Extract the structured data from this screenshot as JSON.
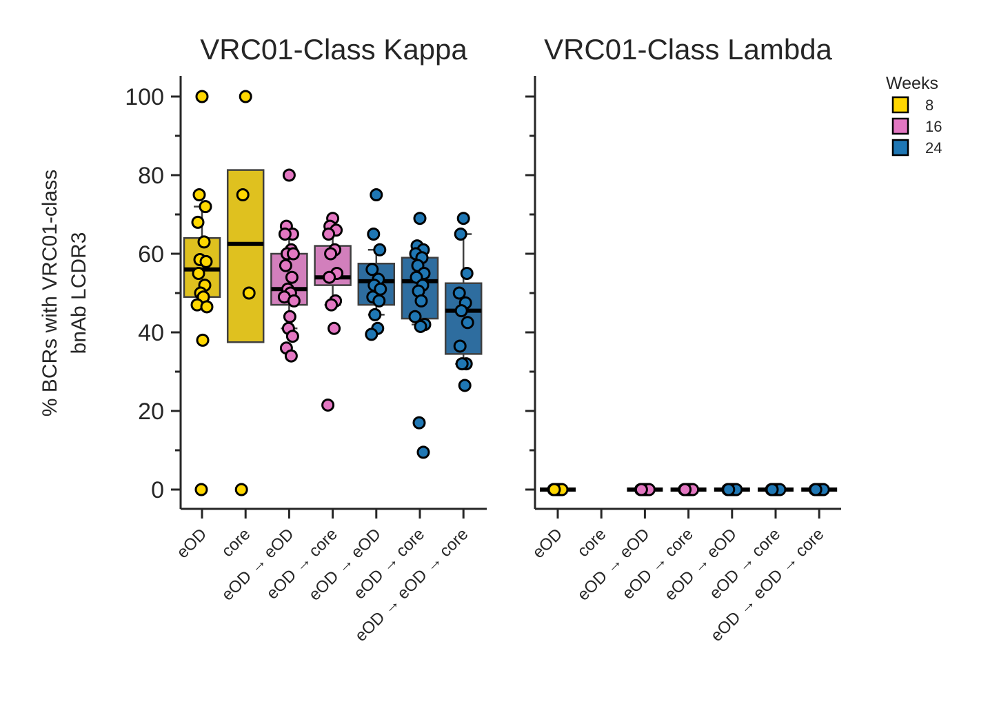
{
  "chart_data": {
    "type": "box",
    "ylabel_lines": [
      "% BCRs with VRC01-class",
      "bnAb LCDR3"
    ],
    "ylim": [
      -5,
      105
    ],
    "yticks": [
      0,
      20,
      40,
      60,
      80,
      100
    ],
    "categories": [
      "eOD",
      "core",
      "eOD → eOD",
      "eOD → core",
      "eOD → eOD",
      "eOD → core",
      "eOD → eOD → core"
    ],
    "category_week": [
      "8",
      "8",
      "16",
      "16",
      "24",
      "24",
      "24"
    ],
    "legend": {
      "title": "Weeks",
      "placement": "upper-right-outside",
      "entries": [
        {
          "label": "8",
          "color": "#FFD700"
        },
        {
          "label": "16",
          "color": "#E377C2"
        },
        {
          "label": "24",
          "color": "#1F77B4"
        }
      ]
    },
    "colors": {
      "8": {
        "point": "#FFD700",
        "box": "#DFC11F"
      },
      "16": {
        "point": "#E377C2",
        "box": "#D27FBC"
      },
      "24": {
        "point": "#1F77B4",
        "box": "#2E6D9F"
      }
    },
    "panels": [
      {
        "title": "VRC01-Class Kappa",
        "boxes": [
          {
            "q1": 49,
            "median": 56,
            "q3": 64,
            "whisker_low": 47,
            "whisker_high": 72
          },
          {
            "q1": 37.5,
            "median": 62.5,
            "q3": 81.3,
            "whisker_low": 37.5,
            "whisker_high": 81.3
          },
          {
            "q1": 47,
            "median": 51,
            "q3": 60,
            "whisker_low": 41,
            "whisker_high": 65
          },
          {
            "q1": 52,
            "median": 54,
            "q3": 62,
            "whisker_low": 47,
            "whisker_high": 67
          },
          {
            "q1": 47,
            "median": 53,
            "q3": 57.5,
            "whisker_low": 44.5,
            "whisker_high": 61
          },
          {
            "q1": 43.5,
            "median": 53,
            "q3": 59,
            "whisker_low": 42,
            "whisker_high": 61
          },
          {
            "q1": 34.5,
            "median": 45.5,
            "q3": 52.5,
            "whisker_low": 32,
            "whisker_high": 65
          }
        ],
        "points": [
          [
            100,
            75,
            72,
            68,
            63,
            58.5,
            58,
            55,
            52,
            50,
            49,
            47,
            46.5,
            38,
            0
          ],
          [
            100,
            75,
            50,
            0
          ],
          [
            80,
            67,
            65,
            65,
            61,
            60,
            60,
            57,
            54,
            51,
            50,
            49,
            48,
            44,
            41,
            39,
            36,
            34
          ],
          [
            69,
            67,
            66,
            65,
            61,
            60,
            55,
            54,
            48,
            47,
            41,
            21.5
          ],
          [
            75,
            65,
            61,
            56,
            53.5,
            52,
            51,
            49,
            48,
            44.5,
            41,
            39.5
          ],
          [
            69,
            62,
            61,
            60,
            59,
            57,
            55,
            54,
            52,
            50.5,
            48,
            44,
            42,
            41.5,
            17,
            9.5
          ],
          [
            69,
            65,
            55,
            50,
            47.5,
            45.5,
            42.5,
            36.5,
            32,
            32,
            26.5
          ]
        ]
      },
      {
        "title": "VRC01-Class Lambda",
        "boxes": [
          {
            "q1": 0,
            "median": 0,
            "q3": 0,
            "whisker_low": 0,
            "whisker_high": 0
          },
          null,
          {
            "q1": 0,
            "median": 0,
            "q3": 0,
            "whisker_low": 0,
            "whisker_high": 0
          },
          {
            "q1": 0,
            "median": 0,
            "q3": 0,
            "whisker_low": 0,
            "whisker_high": 0
          },
          {
            "q1": 0,
            "median": 0,
            "q3": 0,
            "whisker_low": 0,
            "whisker_high": 0
          },
          {
            "q1": 0,
            "median": 0,
            "q3": 0,
            "whisker_low": 0,
            "whisker_high": 0
          },
          {
            "q1": 0,
            "median": 0,
            "q3": 0,
            "whisker_low": 0,
            "whisker_high": 0
          }
        ],
        "points": [
          [
            0,
            0,
            0,
            0,
            0,
            0,
            0,
            0
          ],
          [],
          [
            0,
            0,
            0,
            0,
            0,
            0,
            0,
            0
          ],
          [
            0,
            0,
            0,
            0,
            0,
            0,
            0,
            0
          ],
          [
            0,
            0,
            0,
            0,
            0,
            0,
            0,
            0
          ],
          [
            0,
            0,
            0,
            0,
            0,
            0,
            0,
            0
          ],
          [
            0,
            0,
            0,
            0,
            0,
            0,
            0,
            0
          ]
        ]
      }
    ]
  }
}
